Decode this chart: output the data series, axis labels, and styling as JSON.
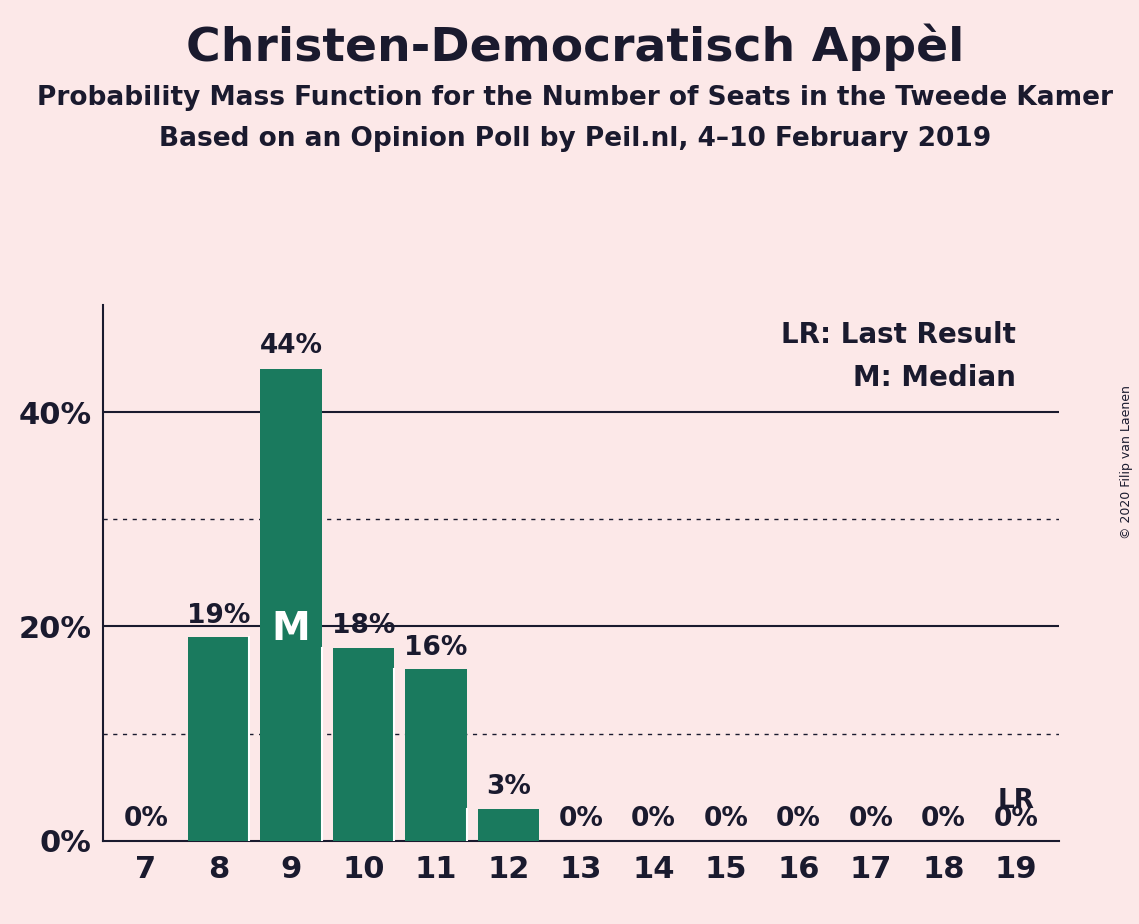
{
  "title": "Christen-Democratisch Appèl",
  "subtitle1": "Probability Mass Function for the Number of Seats in the Tweede Kamer",
  "subtitle2": "Based on an Opinion Poll by Peil.nl, 4–10 February 2019",
  "copyright": "© 2020 Filip van Laenen",
  "categories": [
    7,
    8,
    9,
    10,
    11,
    12,
    13,
    14,
    15,
    16,
    17,
    18,
    19
  ],
  "values": [
    0,
    19,
    44,
    18,
    16,
    3,
    0,
    0,
    0,
    0,
    0,
    0,
    0
  ],
  "bar_color": "#1a7a5e",
  "background_color": "#fce8e8",
  "text_color": "#1a1a2e",
  "median_seat": 9,
  "last_result_seat": 19,
  "solid_gridlines": [
    20,
    40
  ],
  "dotted_gridlines": [
    10,
    30
  ],
  "ylim": [
    0,
    50
  ],
  "legend_lr_label": "LR: Last Result",
  "legend_m_label": "M: Median",
  "lr_label": "LR",
  "m_label": "M",
  "title_fontsize": 34,
  "subtitle_fontsize": 19,
  "bar_label_fontsize": 19,
  "axis_label_fontsize": 22,
  "legend_fontsize": 20,
  "m_fontsize": 28
}
